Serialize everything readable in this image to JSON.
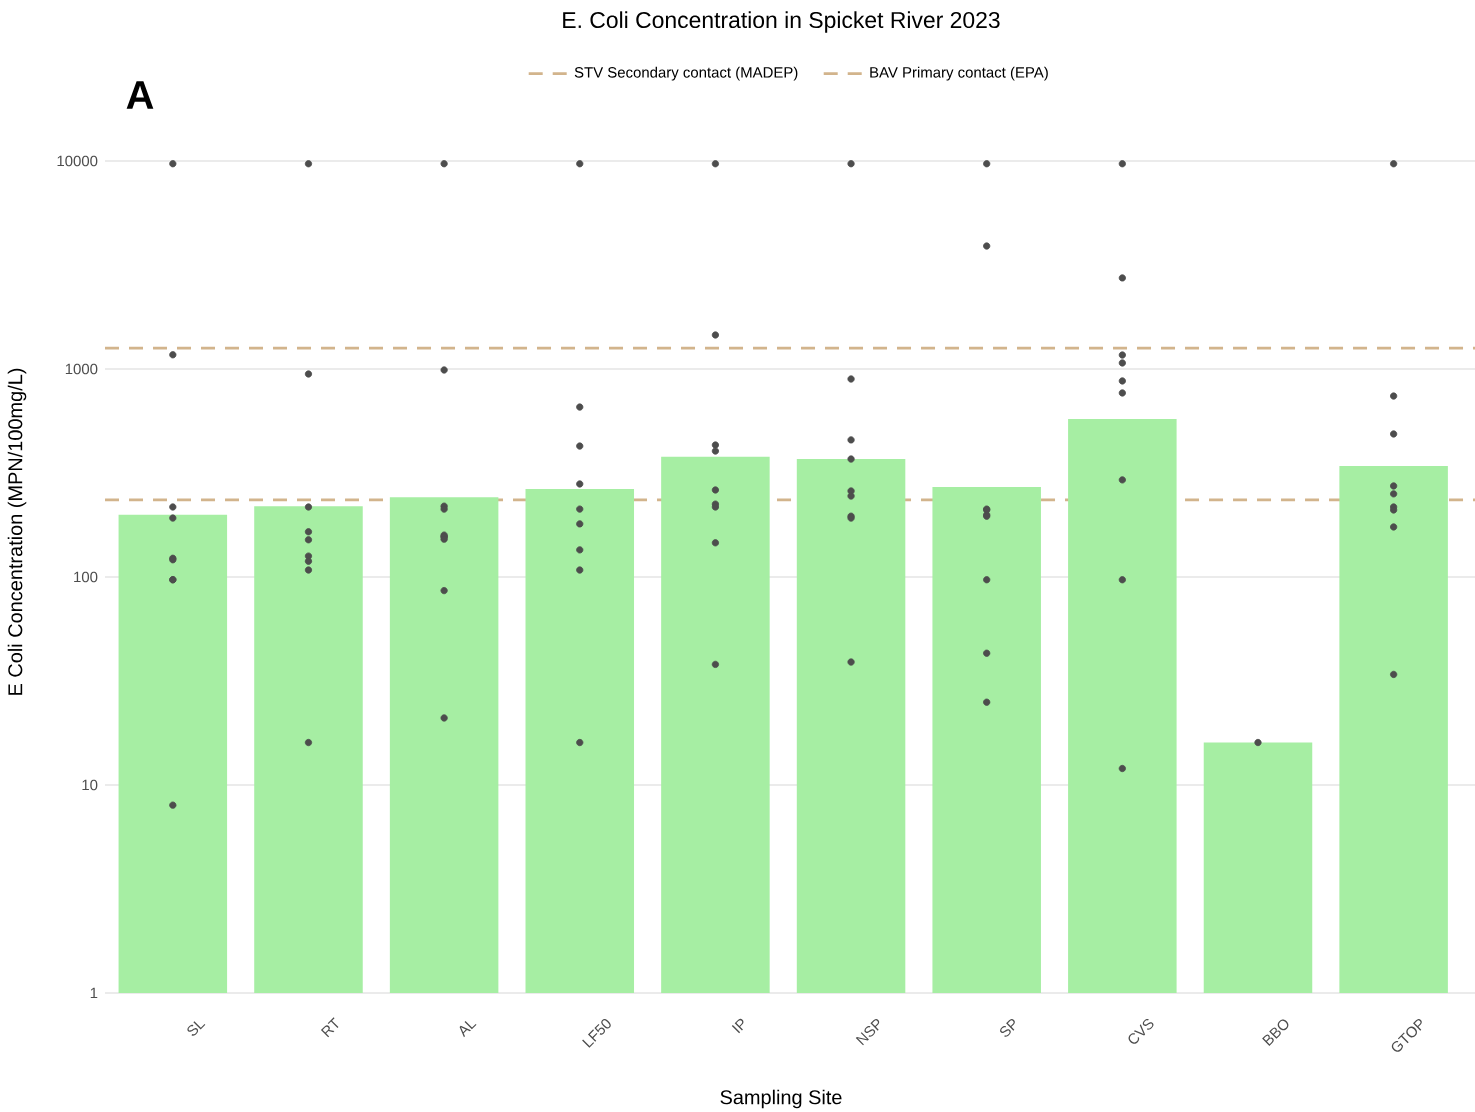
{
  "chart_data": {
    "type": "bar",
    "title": "E. Coli Concentration in Spicket River 2023",
    "xlabel": "Sampling Site",
    "ylabel": "E Coli Concentration (MPN/100mg/L)",
    "categories": [
      "SL",
      "RT",
      "AL",
      "LF50",
      "IP",
      "NSP",
      "SP",
      "CVS",
      "BBO",
      "GTOP"
    ],
    "log": "y",
    "ylim": [
      1,
      10000
    ],
    "yticks": [
      1,
      10,
      100,
      1000,
      10000
    ],
    "grid": "y",
    "legend": "top",
    "annotations": [
      "A"
    ],
    "series": [
      {
        "color": "#a6eea3",
        "values": [
          199,
          219,
          242,
          265,
          378,
          369,
          271,
          575,
          16,
          342
        ]
      },
      {
        "type": "scatter",
        "color": "#4d4d4d",
        "marker": "circle",
        "x": [
          "SL",
          "SL",
          "SL",
          "SL",
          "SL",
          "SL",
          "SL",
          "SL",
          "SL",
          "RT",
          "RT",
          "RT",
          "RT",
          "RT",
          "RT",
          "RT",
          "RT",
          "RT",
          "AL",
          "AL",
          "AL",
          "AL",
          "AL",
          "AL",
          "AL",
          "AL",
          "AL",
          "AL",
          "LF50",
          "LF50",
          "LF50",
          "LF50",
          "LF50",
          "LF50",
          "LF50",
          "LF50",
          "LF50",
          "IP",
          "IP",
          "IP",
          "IP",
          "IP",
          "IP",
          "IP",
          "IP",
          "IP",
          "NSP",
          "NSP",
          "NSP",
          "NSP",
          "NSP",
          "NSP",
          "NSP",
          "NSP",
          "NSP",
          "SP",
          "SP",
          "SP",
          "SP",
          "SP",
          "SP",
          "SP",
          "SP",
          "SP",
          "CVS",
          "CVS",
          "CVS",
          "CVS",
          "CVS",
          "CVS",
          "CVS",
          "CVS",
          "CVS",
          "BBO",
          "GTOP",
          "GTOP",
          "GTOP",
          "GTOP",
          "GTOP",
          "GTOP",
          "GTOP",
          "GTOP",
          "GTOP"
        ],
        "values": [
          9700,
          1170,
          217,
          192,
          123,
          121,
          97,
          97,
          8,
          9700,
          946,
          217,
          165,
          151,
          126,
          119,
          108,
          16,
          9700,
          989,
          219,
          212,
          159,
          156,
          156,
          152,
          86,
          21,
          9700,
          656,
          426,
          280,
          212,
          180,
          135,
          108,
          16,
          9700,
          1457,
          431,
          403,
          262,
          224,
          217,
          146,
          38,
          9700,
          895,
          456,
          369,
          259,
          245,
          196,
          192,
          39,
          9700,
          3900,
          212,
          210,
          199,
          196,
          97,
          43,
          25,
          9700,
          2740,
          1167,
          1069,
          876,
          767,
          293,
          97,
          12,
          16,
          9700,
          741,
          487,
          274,
          251,
          217,
          210,
          174,
          34
        ]
      }
    ],
    "ref_lines": [
      {
        "axis": "y",
        "value": 1260,
        "label": "STV Secondary contact (MADEP)",
        "color": "#d2b48c",
        "line_style": "dashed"
      },
      {
        "axis": "y",
        "value": 235,
        "label": "BAV Primary contact (EPA)",
        "color": "#d2b48c",
        "line_style": "dashed"
      }
    ]
  }
}
